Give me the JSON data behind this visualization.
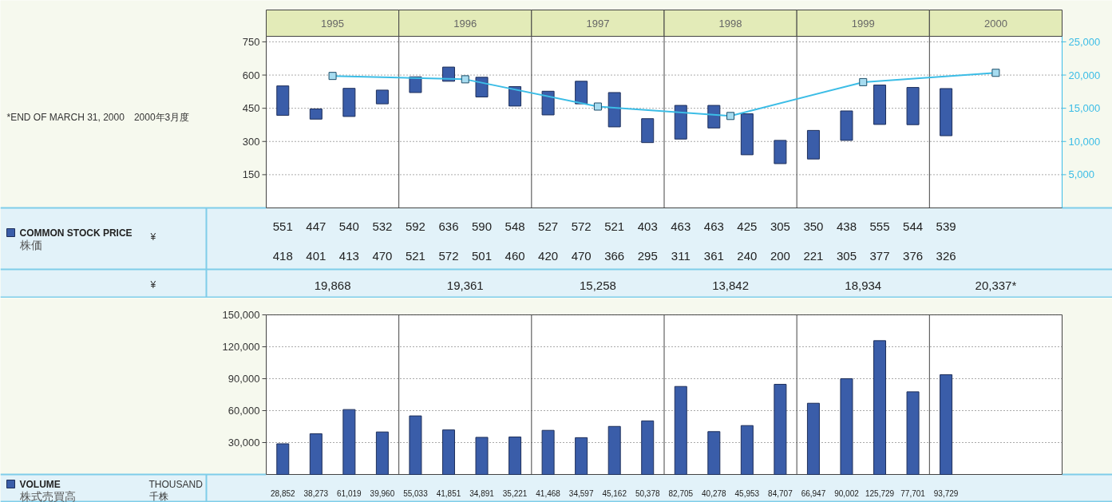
{
  "chart_data": [
    {
      "type": "bar",
      "xlim": [
        1995,
        2001
      ],
      "ylim": [
        0,
        775
      ],
      "yticks": [
        150,
        300,
        450,
        600,
        750
      ],
      "y2lim": [
        0,
        25833
      ],
      "y2ticks": [
        {
          "value": 5000,
          "label": "5,000"
        },
        {
          "value": 10000,
          "label": "10,000"
        },
        {
          "value": 15000,
          "label": "15,000"
        },
        {
          "value": 20000,
          "label": "20,000"
        },
        {
          "value": 25000,
          "label": "25,000"
        }
      ],
      "xticks": [
        {
          "value": 1995.5,
          "label": "1995"
        },
        {
          "value": 1996.5,
          "label": "1996"
        },
        {
          "value": 1997.5,
          "label": "1997"
        },
        {
          "value": 1998.5,
          "label": "1998"
        },
        {
          "value": 1999.5,
          "label": "1999"
        },
        {
          "value": 2000.5,
          "label": "2000"
        }
      ],
      "ref_lines": [
        {
          "axis": "x",
          "value": 1996,
          "color": "#444444"
        },
        {
          "axis": "x",
          "value": 1997,
          "color": "#444444"
        },
        {
          "axis": "x",
          "value": 1998,
          "color": "#444444"
        },
        {
          "axis": "x",
          "value": 1999,
          "color": "#444444"
        },
        {
          "axis": "x",
          "value": 2000,
          "color": "#444444"
        }
      ],
      "grid": "y",
      "legend": "left",
      "annotations": [
        "¥",
        "¥",
        "*END OF MARCH 31, 2000　2000年3月度",
        "551",
        "418",
        "447",
        "401",
        "540",
        "413",
        "532",
        "470",
        "592",
        "521",
        "636",
        "572",
        "590",
        "501",
        "548",
        "460",
        "527",
        "420",
        "572",
        "470",
        "521",
        "366",
        "403",
        "295",
        "463",
        "311",
        "463",
        "361",
        "425",
        "240",
        "305",
        "200",
        "350",
        "221",
        "438",
        "305",
        "555",
        "377",
        "544",
        "376",
        "539",
        "326",
        "19,868",
        "19,361",
        "15,258",
        "13,842",
        "18,934",
        "20,337*"
      ],
      "x": [
        1995.125,
        1995.375,
        1995.625,
        1995.875,
        1996.125,
        1996.375,
        1996.625,
        1996.875,
        1997.125,
        1997.375,
        1997.625,
        1997.875,
        1998.125,
        1998.375,
        1998.625,
        1998.875,
        1999.125,
        1999.375,
        1999.625,
        1999.875,
        2000.125
      ],
      "series": [
        {
          "name": "COMMON STOCK PRICE\n株価",
          "color": "#3a5da9",
          "base": [
            418,
            401,
            413,
            470,
            521,
            572,
            501,
            460,
            420,
            470,
            366,
            295,
            311,
            361,
            240,
            200,
            221,
            305,
            377,
            376,
            326
          ],
          "values": [
            133,
            46,
            127,
            62,
            71,
            64,
            89,
            88,
            107,
            102,
            155,
            108,
            152,
            102,
            185,
            105,
            129,
            133,
            178,
            168,
            213
          ]
        },
        {
          "type": "line",
          "axis": "y2",
          "marker": "square",
          "color": "#3cbde6",
          "x": [
            1995.5,
            1996.5,
            1997.5,
            1998.5,
            1999.5,
            2000.5
          ],
          "values": [
            19868,
            19361,
            15258,
            13842,
            18934,
            20337
          ]
        }
      ]
    },
    {
      "type": "bar",
      "xlim": [
        1995,
        2001
      ],
      "ylim": [
        0,
        150000
      ],
      "grid": "y",
      "tick_labels": "y",
      "legend": "left",
      "yticks": [
        {
          "value": 30000,
          "label": "30,000"
        },
        {
          "value": 60000,
          "label": "60,000"
        },
        {
          "value": 90000,
          "label": "90,000"
        },
        {
          "value": 120000,
          "label": "120,000"
        },
        {
          "value": 150000,
          "label": "150,000"
        }
      ],
      "ref_lines": [
        {
          "axis": "x",
          "value": 1996,
          "color": "#444444"
        },
        {
          "axis": "x",
          "value": 1997,
          "color": "#444444"
        },
        {
          "axis": "x",
          "value": 1998,
          "color": "#444444"
        },
        {
          "axis": "x",
          "value": 1999,
          "color": "#444444"
        },
        {
          "axis": "x",
          "value": 2000,
          "color": "#444444"
        }
      ],
      "annotations": [
        "THOUSAND\n千株"
      ],
      "x": [
        1995.125,
        1995.375,
        1995.625,
        1995.875,
        1996.125,
        1996.375,
        1996.625,
        1996.875,
        1997.125,
        1997.375,
        1997.625,
        1997.875,
        1998.125,
        1998.375,
        1998.625,
        1998.875,
        1999.125,
        1999.375,
        1999.625,
        1999.875,
        2000.125
      ],
      "series": [
        {
          "name": "VOLUME\n株式売買高",
          "color": "#3a5da9",
          "values": [
            28852,
            38273,
            61019,
            39960,
            55033,
            41851,
            34891,
            35221,
            41468,
            34597,
            45162,
            50378,
            82705,
            40278,
            45953,
            84707,
            66947,
            90002,
            125729,
            77701,
            93729
          ],
          "value_labels": [
            "28,852",
            "38,273",
            "61,019",
            "39,960",
            "55,033",
            "41,851",
            "34,891",
            "35,221",
            "41,468",
            "34,597",
            "45,162",
            "50,378",
            "82,705",
            "40,278",
            "45,953",
            "84,707",
            "66,947",
            "90,002",
            "125,729",
            "77,701",
            "93,729"
          ]
        }
      ]
    }
  ]
}
